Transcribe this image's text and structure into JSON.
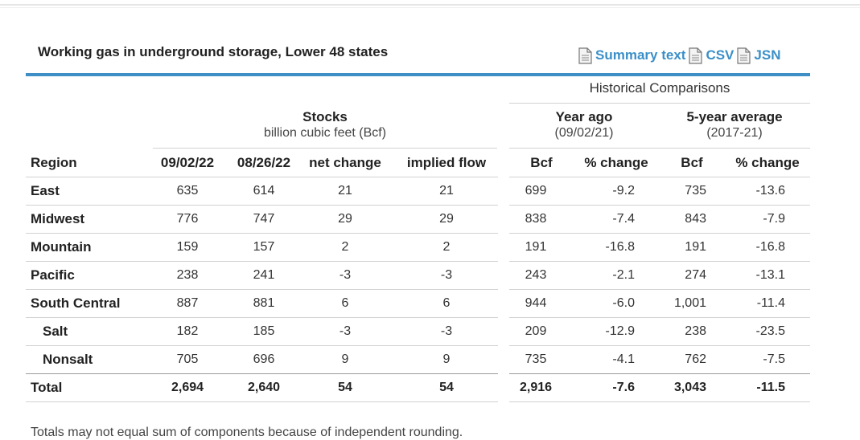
{
  "title": "Working gas in underground storage, Lower 48 states",
  "links": [
    {
      "label": "Summary text",
      "icon": "document-icon"
    },
    {
      "label": "CSV",
      "icon": "document-icon"
    },
    {
      "label": "JSN",
      "icon": "document-icon"
    }
  ],
  "accent_color": "#3d8fc6",
  "historical_label": "Historical Comparisons",
  "stocks": {
    "title": "Stocks",
    "subtitle": "billion cubic feet (Bcf)"
  },
  "year_ago": {
    "title": "Year ago",
    "subtitle": "(09/02/21)"
  },
  "five_year": {
    "title": "5-year average",
    "subtitle": "(2017-21)"
  },
  "columns": [
    "Region",
    "09/02/22",
    "08/26/22",
    "net change",
    "implied flow",
    "Bcf",
    "% change",
    "Bcf",
    "% change"
  ],
  "rows": [
    {
      "region": "East",
      "v": [
        "635",
        "614",
        "21",
        "21",
        "699",
        "-9.2",
        "735",
        "-13.6"
      ]
    },
    {
      "region": "Midwest",
      "v": [
        "776",
        "747",
        "29",
        "29",
        "838",
        "-7.4",
        "843",
        "-7.9"
      ]
    },
    {
      "region": "Mountain",
      "v": [
        "159",
        "157",
        "2",
        "2",
        "191",
        "-16.8",
        "191",
        "-16.8"
      ]
    },
    {
      "region": "Pacific",
      "v": [
        "238",
        "241",
        "-3",
        "-3",
        "243",
        "-2.1",
        "274",
        "-13.1"
      ]
    },
    {
      "region": "South Central",
      "v": [
        "887",
        "881",
        "6",
        "6",
        "944",
        "-6.0",
        "1,001",
        "-11.4"
      ]
    },
    {
      "region": "Salt",
      "v": [
        "182",
        "185",
        "-3",
        "-3",
        "209",
        "-12.9",
        "238",
        "-23.5"
      ]
    },
    {
      "region": "Nonsalt",
      "v": [
        "705",
        "696",
        "9",
        "9",
        "735",
        "-4.1",
        "762",
        "-7.5"
      ]
    },
    {
      "region": "Total",
      "v": [
        "2,694",
        "2,640",
        "54",
        "54",
        "2,916",
        "-7.6",
        "3,043",
        "-11.5"
      ]
    }
  ],
  "footnote": "Totals may not equal sum of components because of independent rounding."
}
